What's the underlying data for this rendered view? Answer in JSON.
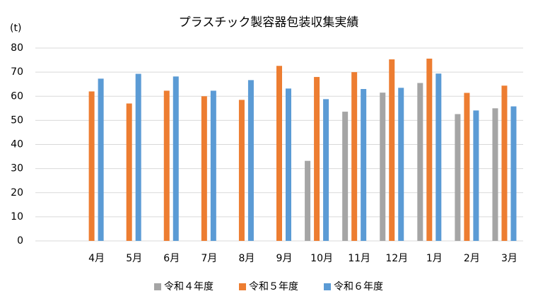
{
  "chart_data": {
    "type": "bar",
    "title": "プラスチック製容器包装収集実績",
    "y_label": "(t)",
    "categories": [
      null,
      "4月",
      "5月",
      "6月",
      "7月",
      "8月",
      "9月",
      "10月",
      "11月",
      "12月",
      "1月",
      "2月",
      "3月"
    ],
    "series": [
      {
        "name": "令和４年度",
        "color": "#a5a5a5",
        "values": [
          null,
          null,
          null,
          null,
          null,
          null,
          null,
          33.2,
          53.6,
          61.5,
          65.5,
          52.6,
          55
        ]
      },
      {
        "name": "令和５年度",
        "color": "#ed7d31",
        "values": [
          null,
          62,
          57,
          62.3,
          60,
          58.5,
          72.6,
          68,
          70,
          75.3,
          75.6,
          61.4,
          64.4
        ]
      },
      {
        "name": "令和６年度",
        "color": "#5b9bd5",
        "values": [
          null,
          67.3,
          69.3,
          68.2,
          62.3,
          66.7,
          63.2,
          58.8,
          63,
          63.5,
          69.4,
          54.1,
          55.8
        ]
      }
    ],
    "ylim": [
      0,
      80
    ],
    "yticks": [
      0,
      10,
      20,
      30,
      40,
      50,
      60,
      70,
      80
    ],
    "grid": true,
    "legend": "bottom"
  }
}
